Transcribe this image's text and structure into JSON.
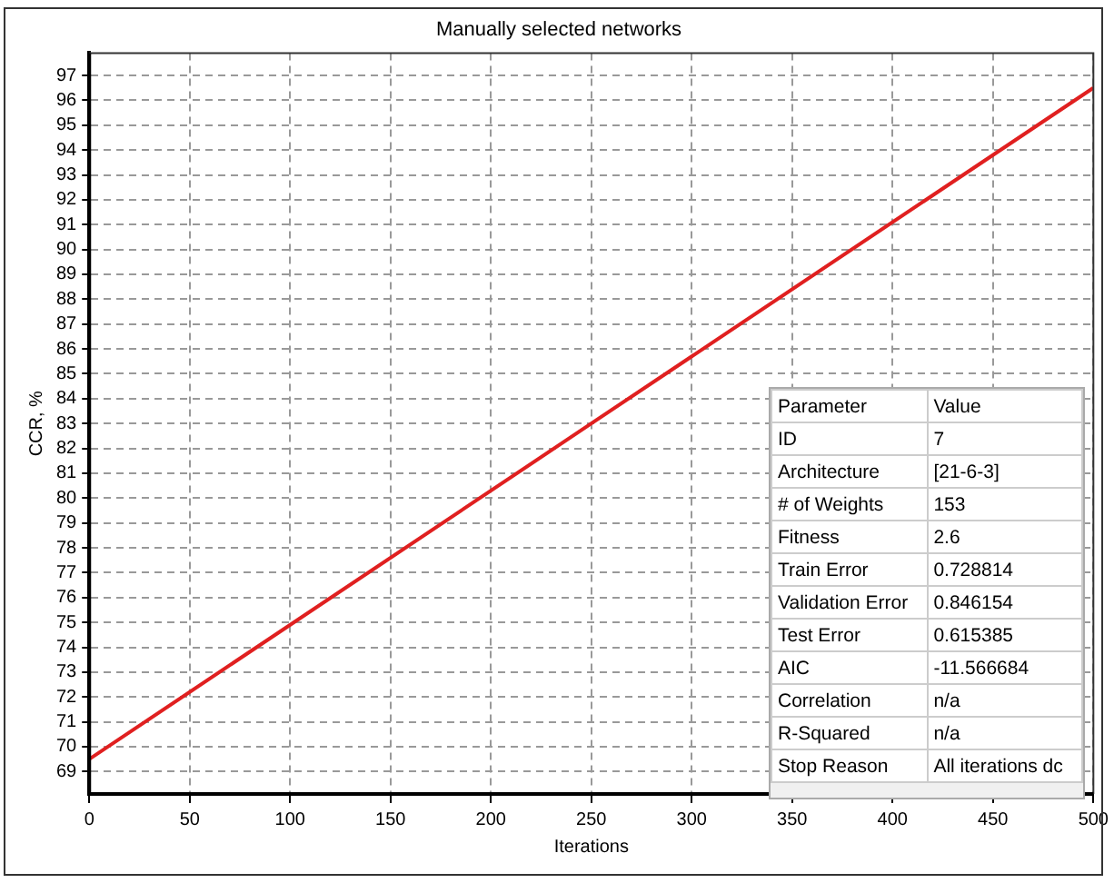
{
  "chart_data": {
    "type": "line",
    "title": "Manually selected networks",
    "xlabel": "Iterations",
    "ylabel": "CCR, %",
    "x": [
      0,
      250,
      500
    ],
    "series": [
      {
        "color": "#e02020",
        "values": [
          69.5,
          83.0,
          96.5
        ]
      }
    ],
    "xlim": [
      0,
      500
    ],
    "xticks": [
      0,
      50,
      100,
      150,
      200,
      250,
      300,
      350,
      400,
      450,
      500
    ],
    "ylim": [
      68.1,
      97.9
    ],
    "yticks": [
      69,
      70,
      71,
      72,
      73,
      74,
      75,
      76,
      77,
      78,
      79,
      80,
      81,
      82,
      83,
      84,
      85,
      86,
      87,
      88,
      89,
      90,
      91,
      92,
      93,
      94,
      95,
      96,
      97
    ],
    "grid": true,
    "legend": false,
    "annotations": [
      "Parameter",
      "Value",
      "ID",
      "7",
      "Architecture",
      "[21-6-3]",
      "# of Weights",
      "153",
      "Fitness",
      "2.6",
      "Train Error",
      "0.728814",
      "Validation Error",
      "0.846154",
      "Test Error",
      "0.615385",
      "AIC",
      "-11.566684",
      "Correlation",
      "n/a",
      "R-Squared",
      "n/a",
      "Stop Reason",
      "All iterations dc"
    ]
  }
}
